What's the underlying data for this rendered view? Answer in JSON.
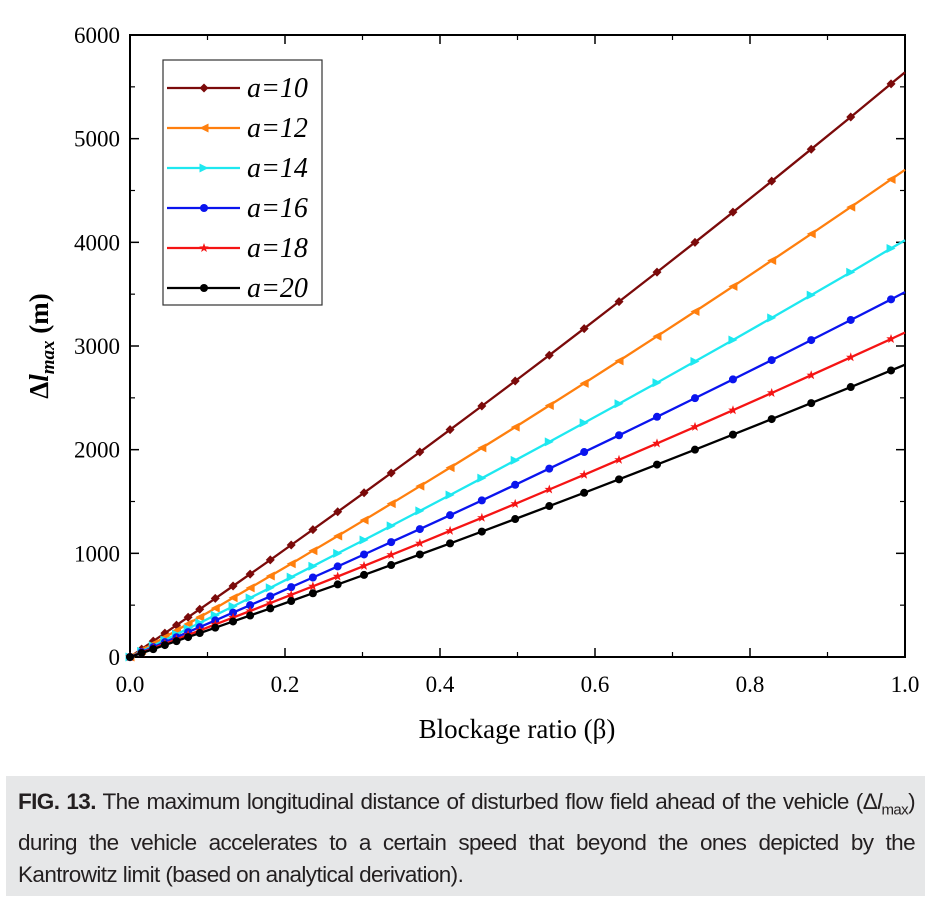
{
  "chart_data": {
    "type": "line",
    "title": "",
    "xlabel": "Blockage ratio (β)",
    "ylabel": {
      "prefix": "Δ",
      "var": "l",
      "sub": "max",
      "unit": " (m)"
    },
    "xlim": [
      0,
      1.0
    ],
    "ylim": [
      0,
      6000
    ],
    "xticks": [
      "0.0",
      "0.2",
      "0.4",
      "0.6",
      "0.8",
      "1.0"
    ],
    "yticks": [
      "0",
      "1000",
      "2000",
      "3000",
      "4000",
      "5000",
      "6000"
    ],
    "grid": false,
    "legend_position": "top-left",
    "x": [
      0,
      0.015,
      0.03,
      0.045,
      0.06,
      0.075,
      0.09,
      0.11,
      0.133,
      0.155,
      0.181,
      0.208,
      0.236,
      0.268,
      0.302,
      0.337,
      0.374,
      0.413,
      0.454,
      0.497,
      0.541,
      0.586,
      0.631,
      0.68,
      0.729,
      0.778,
      0.828,
      0.879,
      0.93,
      0.982,
      1.0
    ],
    "series": [
      {
        "name": "a=10",
        "color": "#7b0a0a",
        "marker": "diamond",
        "values": [
          0,
          76,
          153,
          230,
          307,
          384,
          461,
          565,
          685,
          800,
          937,
          1080,
          1229,
          1401,
          1584,
          1775,
          1977,
          2193,
          2421,
          2662,
          2911,
          3168,
          3428,
          3713,
          4000,
          4291,
          4590,
          4898,
          5209,
          5529,
          5640
        ]
      },
      {
        "name": "a=12",
        "color": "#ff7f0e",
        "marker": "triangle-left",
        "values": [
          0,
          64,
          127,
          191,
          256,
          320,
          385,
          471,
          571,
          667,
          781,
          900,
          1025,
          1167,
          1320,
          1479,
          1648,
          1827,
          2017,
          2218,
          2426,
          2640,
          2856,
          3094,
          3333,
          3575,
          3825,
          4081,
          4340,
          4607,
          4700
        ]
      },
      {
        "name": "a=14",
        "color": "#1ee8f0",
        "marker": "triangle-right",
        "values": [
          0,
          54,
          109,
          164,
          219,
          274,
          329,
          403,
          488,
          570,
          668,
          770,
          876,
          999,
          1129,
          1265,
          1409,
          1563,
          1725,
          1897,
          2075,
          2258,
          2443,
          2646,
          2851,
          3058,
          3271,
          3491,
          3712,
          3941,
          4020
        ]
      },
      {
        "name": "a=16",
        "color": "#0a14ee",
        "marker": "circle",
        "values": [
          0,
          48,
          95,
          143,
          191,
          240,
          288,
          353,
          428,
          500,
          585,
          674,
          767,
          874,
          989,
          1108,
          1234,
          1368,
          1511,
          1661,
          1817,
          1977,
          2139,
          2317,
          2497,
          2678,
          2864,
          3057,
          3251,
          3450,
          3520
        ]
      },
      {
        "name": "a=18",
        "color": "#f51414",
        "marker": "star",
        "values": [
          0,
          42,
          85,
          127,
          170,
          213,
          256,
          314,
          380,
          444,
          520,
          600,
          682,
          777,
          879,
          985,
          1097,
          1217,
          1343,
          1477,
          1616,
          1758,
          1902,
          2060,
          2220,
          2381,
          2547,
          2718,
          2891,
          3068,
          3130
        ]
      },
      {
        "name": "a=20",
        "color": "#000000",
        "marker": "circle",
        "values": [
          0,
          38,
          76,
          115,
          153,
          192,
          231,
          283,
          343,
          400,
          469,
          540,
          615,
          700,
          792,
          887,
          989,
          1096,
          1210,
          1331,
          1456,
          1584,
          1714,
          1856,
          2000,
          2145,
          2295,
          2449,
          2604,
          2764,
          2820
        ]
      }
    ]
  },
  "caption": {
    "label": "FIG. 13.",
    "text_before": " The maximum longitudinal distance of disturbed flow field ahead of the vehicle (Δ",
    "var": "l",
    "sub": "max",
    "text_after": ") during the vehicle accelerates to a certain speed that beyond the ones depicted by the Kantrowitz limit (based on analytical derivation)."
  }
}
